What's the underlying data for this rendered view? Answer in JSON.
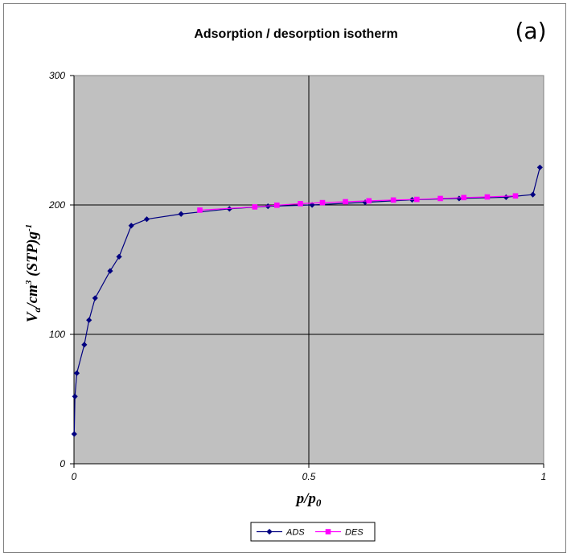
{
  "chart_data": {
    "type": "line",
    "title": "Adsorption / desorption isotherm",
    "panel_label": "(a)",
    "xlabel": {
      "main": "p/p",
      "sub": "0"
    },
    "ylabel": {
      "v": "V",
      "v_sub": "a",
      "cm": "/cm",
      "cm_sup": "3",
      "stp": " (STP)g",
      "g_sup": "-1"
    },
    "xlim": [
      0,
      1
    ],
    "ylim": [
      0,
      300
    ],
    "x_ticks": [
      "0",
      "0.5",
      "1"
    ],
    "y_ticks": [
      "0",
      "100",
      "200",
      "300"
    ],
    "x_tick_values": [
      0,
      0.5,
      1
    ],
    "y_tick_values": [
      0,
      100,
      200,
      300
    ],
    "gridlines": {
      "x": [
        0.5
      ],
      "y": [
        100,
        200
      ]
    },
    "plot_background": "#c0c0c0",
    "legend_position": "bottom",
    "series": [
      {
        "name": "ADS",
        "color": "#000080",
        "marker": "diamond",
        "x": [
          0.0005,
          0.002,
          0.006,
          0.022,
          0.032,
          0.045,
          0.077,
          0.096,
          0.122,
          0.155,
          0.228,
          0.331,
          0.413,
          0.507,
          0.62,
          0.72,
          0.82,
          0.92,
          0.977,
          0.992
        ],
        "y": [
          23,
          52,
          70,
          92,
          111,
          128,
          149,
          160,
          184,
          189,
          193,
          197,
          199,
          200,
          202,
          204,
          205,
          206,
          208,
          229
        ]
      },
      {
        "name": "DES",
        "color": "#ff00ff",
        "marker": "square",
        "x": [
          0.268,
          0.385,
          0.432,
          0.482,
          0.529,
          0.578,
          0.628,
          0.68,
          0.73,
          0.78,
          0.83,
          0.88,
          0.94
        ],
        "y": [
          196,
          198.5,
          199.8,
          201,
          201.8,
          202.5,
          203.2,
          203.8,
          204.3,
          205,
          205.7,
          206.2,
          207
        ]
      }
    ]
  }
}
